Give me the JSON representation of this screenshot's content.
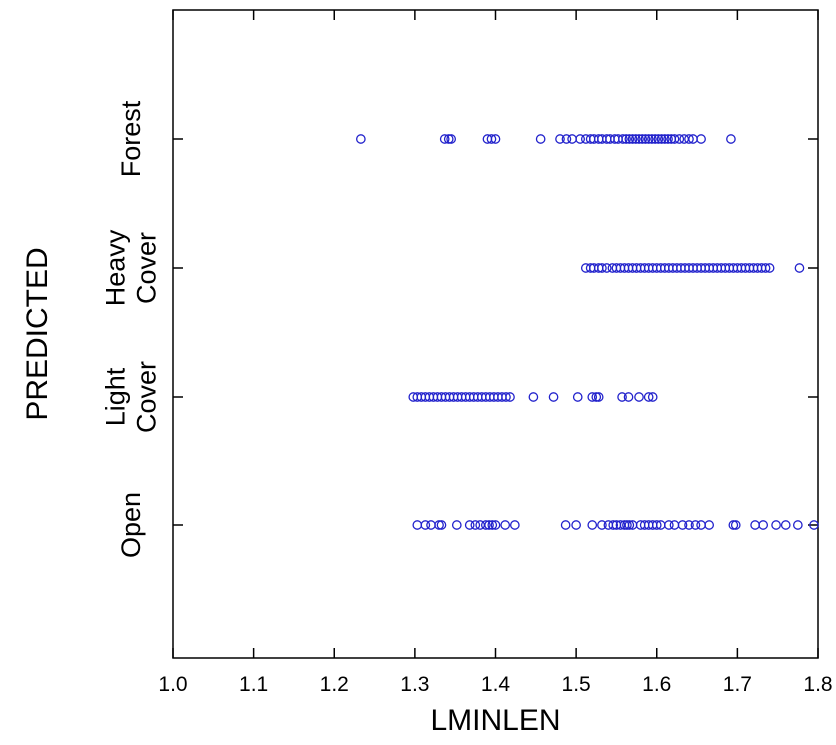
{
  "chart_data": {
    "type": "scatter",
    "title": "",
    "xlabel": "LMINLEN",
    "ylabel": "PREDICTED",
    "xlim": [
      1.0,
      1.8
    ],
    "xticks": [
      "1.0",
      "1.1",
      "1.2",
      "1.3",
      "1.4",
      "1.5",
      "1.6",
      "1.7",
      "1.8"
    ],
    "categories": [
      {
        "label_lines": [
          "Open"
        ]
      },
      {
        "label_lines": [
          "Light",
          "Cover"
        ]
      },
      {
        "label_lines": [
          "Heavy",
          "Cover"
        ]
      },
      {
        "label_lines": [
          "Forest"
        ]
      }
    ],
    "marker": {
      "shape": "open-circle",
      "color": "#2222cc"
    },
    "grid": false,
    "series": [
      {
        "category_index": 3,
        "x": [
          1.233,
          1.337,
          1.342,
          1.345,
          1.39,
          1.395,
          1.4,
          1.456,
          1.48,
          1.488,
          1.495,
          1.505,
          1.512,
          1.518,
          1.522,
          1.528,
          1.532,
          1.538,
          1.542,
          1.548,
          1.552,
          1.558,
          1.562,
          1.566,
          1.57,
          1.574,
          1.578,
          1.582,
          1.586,
          1.59,
          1.594,
          1.598,
          1.602,
          1.606,
          1.61,
          1.614,
          1.618,
          1.622,
          1.628,
          1.634,
          1.64,
          1.645,
          1.655,
          1.692
        ]
      },
      {
        "category_index": 2,
        "x": [
          1.512,
          1.518,
          1.522,
          1.528,
          1.532,
          1.538,
          1.545,
          1.55,
          1.555,
          1.56,
          1.565,
          1.57,
          1.575,
          1.58,
          1.585,
          1.59,
          1.595,
          1.6,
          1.605,
          1.61,
          1.615,
          1.62,
          1.625,
          1.63,
          1.635,
          1.64,
          1.645,
          1.65,
          1.655,
          1.66,
          1.665,
          1.67,
          1.675,
          1.68,
          1.685,
          1.69,
          1.695,
          1.7,
          1.705,
          1.71,
          1.715,
          1.72,
          1.725,
          1.73,
          1.735,
          1.74,
          1.777
        ]
      },
      {
        "category_index": 1,
        "x": [
          1.298,
          1.303,
          1.308,
          1.313,
          1.318,
          1.323,
          1.328,
          1.333,
          1.338,
          1.343,
          1.348,
          1.353,
          1.358,
          1.363,
          1.368,
          1.373,
          1.378,
          1.383,
          1.388,
          1.393,
          1.398,
          1.403,
          1.408,
          1.413,
          1.418,
          1.447,
          1.472,
          1.502,
          1.52,
          1.525,
          1.528,
          1.557,
          1.565,
          1.578,
          1.59,
          1.595
        ]
      },
      {
        "category_index": 0,
        "x": [
          1.303,
          1.313,
          1.32,
          1.33,
          1.333,
          1.352,
          1.368,
          1.375,
          1.381,
          1.388,
          1.392,
          1.396,
          1.4,
          1.412,
          1.424,
          1.487,
          1.5,
          1.52,
          1.532,
          1.54,
          1.546,
          1.55,
          1.555,
          1.56,
          1.563,
          1.566,
          1.57,
          1.58,
          1.585,
          1.59,
          1.595,
          1.6,
          1.605,
          1.615,
          1.622,
          1.632,
          1.64,
          1.648,
          1.655,
          1.665,
          1.695,
          1.698,
          1.722,
          1.732,
          1.748,
          1.76,
          1.775,
          1.795
        ]
      }
    ]
  }
}
